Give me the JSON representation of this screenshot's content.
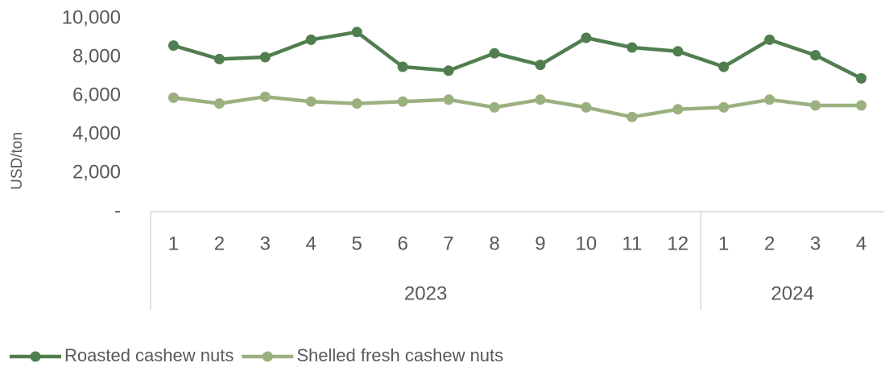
{
  "chart_data": {
    "type": "line",
    "y_label": "USD/ton",
    "categories": [
      "1",
      "2",
      "3",
      "4",
      "5",
      "6",
      "7",
      "8",
      "9",
      "10",
      "11",
      "12",
      "1",
      "2",
      "3",
      "4"
    ],
    "category_groups": [
      {
        "label": "2023",
        "span": 12
      },
      {
        "label": "2024",
        "span": 4
      }
    ],
    "series": [
      {
        "name": "Roasted cashew nuts",
        "color": "#507e4f",
        "values": [
          8600,
          7900,
          8000,
          8900,
          9300,
          7500,
          7300,
          8200,
          7600,
          9000,
          8500,
          8300,
          7500,
          8900,
          8100,
          6900
        ]
      },
      {
        "name": "Shelled fresh cashew nuts",
        "color": "#9bb07f",
        "values": [
          5900,
          5600,
          5950,
          5700,
          5600,
          5700,
          5800,
          5400,
          5800,
          5400,
          4900,
          5300,
          5400,
          5800,
          5500,
          5500
        ]
      }
    ],
    "ylim": [
      0,
      10000
    ],
    "yticks": [
      {
        "value": 0,
        "label": "-"
      },
      {
        "value": 2000,
        "label": "2,000"
      },
      {
        "value": 4000,
        "label": "4,000"
      },
      {
        "value": 6000,
        "label": "6,000"
      },
      {
        "value": 8000,
        "label": "8,000"
      },
      {
        "value": 10000,
        "label": "10,000"
      }
    ],
    "grid": false,
    "legend": "bottom-left"
  }
}
